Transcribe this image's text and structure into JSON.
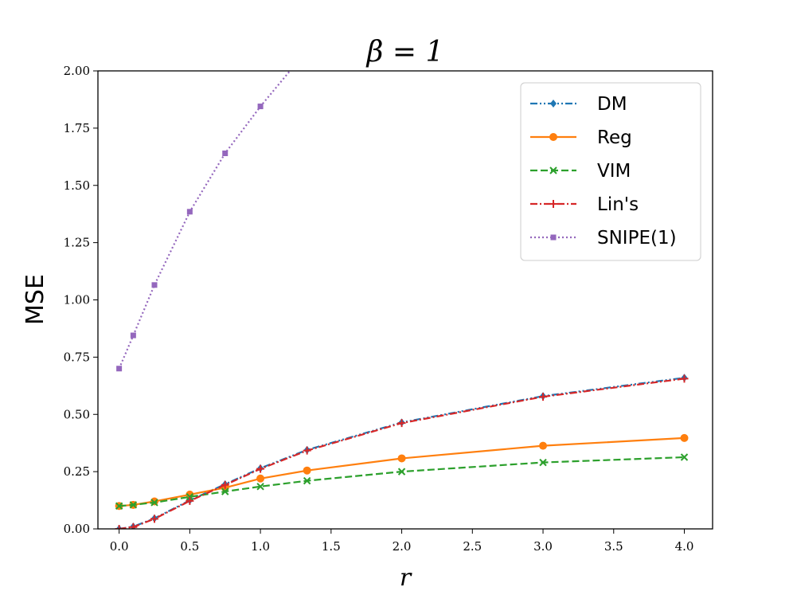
{
  "chart_data": {
    "type": "line",
    "title": "β = 1",
    "xlabel": "r",
    "ylabel": "MSE",
    "xlim": [
      -0.15,
      4.2
    ],
    "ylim": [
      0,
      2.0
    ],
    "x_ticks": [
      0.0,
      0.5,
      1.0,
      1.5,
      2.0,
      2.5,
      3.0,
      3.5,
      4.0
    ],
    "x_tick_labels": [
      "0.0",
      "0.5",
      "1.0",
      "1.5",
      "2.0",
      "2.5",
      "3.0",
      "3.5",
      "4.0"
    ],
    "y_ticks": [
      0.0,
      0.25,
      0.5,
      0.75,
      1.0,
      1.25,
      1.5,
      1.75,
      2.0
    ],
    "y_tick_labels": [
      "0.00",
      "0.25",
      "0.50",
      "0.75",
      "1.00",
      "1.25",
      "1.50",
      "1.75",
      "2.00"
    ],
    "grid": false,
    "legend_position": "top-right",
    "series": [
      {
        "name": "DM",
        "color": "#1f77b4",
        "linestyle": "dashdotdot",
        "marker": "diamond",
        "x": [
          0,
          0.1,
          0.25,
          0.5,
          0.75,
          1.0,
          1.33,
          2.0,
          3.0,
          4.0
        ],
        "y": [
          0.0,
          0.01,
          0.046,
          0.125,
          0.195,
          0.265,
          0.345,
          0.465,
          0.58,
          0.66
        ]
      },
      {
        "name": "Reg",
        "color": "#ff7f0e",
        "linestyle": "solid",
        "marker": "circle",
        "x": [
          0,
          0.1,
          0.25,
          0.5,
          0.75,
          1.0,
          1.33,
          2.0,
          3.0,
          4.0
        ],
        "y": [
          0.1,
          0.105,
          0.12,
          0.15,
          0.18,
          0.22,
          0.255,
          0.308,
          0.363,
          0.397
        ]
      },
      {
        "name": "VIM",
        "color": "#2ca02c",
        "linestyle": "dashed",
        "marker": "x",
        "x": [
          0,
          0.1,
          0.25,
          0.5,
          0.75,
          1.0,
          1.33,
          2.0,
          3.0,
          4.0
        ],
        "y": [
          0.1,
          0.105,
          0.115,
          0.14,
          0.163,
          0.185,
          0.21,
          0.25,
          0.29,
          0.313
        ]
      },
      {
        "name": "Lin's",
        "color": "#d62728",
        "linestyle": "dashdot",
        "marker": "plus",
        "x": [
          0,
          0.1,
          0.25,
          0.5,
          0.75,
          1.0,
          1.33,
          2.0,
          3.0,
          4.0
        ],
        "y": [
          0.0,
          0.008,
          0.044,
          0.122,
          0.192,
          0.262,
          0.342,
          0.462,
          0.577,
          0.656
        ]
      },
      {
        "name": "SNIPE(1)",
        "color": "#9467bd",
        "linestyle": "dotted",
        "marker": "square",
        "x": [
          0,
          0.1,
          0.25,
          0.5,
          0.75,
          1.0,
          1.33
        ],
        "y": [
          0.7,
          0.845,
          1.065,
          1.385,
          1.64,
          1.845,
          2.09
        ]
      }
    ]
  }
}
